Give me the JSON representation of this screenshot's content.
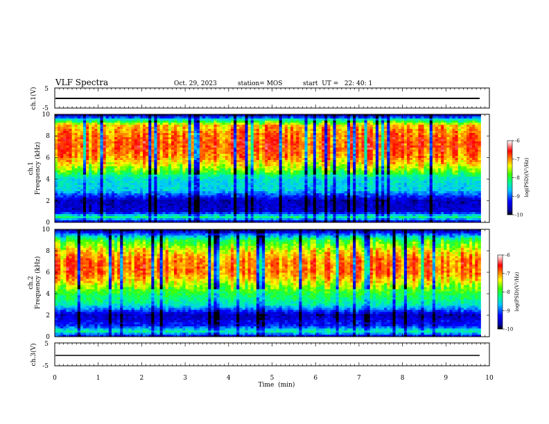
{
  "header": {
    "title": "VLF Spectra",
    "date": "Oct. 29, 2023",
    "station": "station= MOS",
    "start": "start  UT =   22: 40: 1"
  },
  "chart_data": [
    {
      "type": "line",
      "panel": "ch1-waveform",
      "ylabel": "ch.1(V)",
      "ylim": [
        -5,
        5
      ],
      "yticks": [
        "5",
        "-5"
      ],
      "x": [
        0,
        9.8
      ],
      "y": [
        -2,
        -2
      ]
    },
    {
      "type": "heatmap",
      "panel": "ch1-spectrogram",
      "ylabel_lines": [
        "ch.1",
        "Frequency (kHz)"
      ],
      "ylim": [
        0,
        10
      ],
      "yticks": [
        "0",
        "2",
        "4",
        "6",
        "8",
        "10"
      ],
      "xlim": [
        0,
        9.8
      ],
      "colorbar": {
        "label": "log(PSD)(V²/Hz)",
        "range": [
          -10,
          -6
        ],
        "ticks": [
          "-6",
          "-7",
          "-8",
          "-9",
          "-10"
        ]
      },
      "intensity_profile": {
        "freq_khz": [
          0,
          0.5,
          1,
          2,
          3,
          4,
          5,
          6,
          7,
          8,
          9,
          9.5,
          10
        ],
        "log_psd": [
          -9.6,
          -8.2,
          -9.5,
          -9.6,
          -8.6,
          -8.5,
          -7.6,
          -7.0,
          -6.8,
          -6.9,
          -7.2,
          -8.4,
          -9.9
        ]
      }
    },
    {
      "type": "heatmap",
      "panel": "ch2-spectrogram",
      "ylabel_lines": [
        "ch.2",
        "Frequency (kHz)"
      ],
      "ylim": [
        0,
        10
      ],
      "yticks": [
        "0",
        "2",
        "4",
        "6",
        "8",
        "10"
      ],
      "xlim": [
        0,
        9.8
      ],
      "colorbar": {
        "label": "log(PSD)(V²/Hz)",
        "range": [
          -10,
          -6
        ],
        "ticks": [
          "-6",
          "-7",
          "-8",
          "-9",
          "-10"
        ]
      },
      "intensity_profile": {
        "freq_khz": [
          0,
          0.5,
          1,
          2,
          3,
          4,
          5,
          6,
          7,
          8,
          9,
          9.5,
          10
        ],
        "log_psd": [
          -9.4,
          -8.3,
          -9.2,
          -9.6,
          -8.4,
          -8.0,
          -7.4,
          -6.9,
          -6.9,
          -7.3,
          -8.0,
          -8.9,
          -9.9
        ]
      }
    },
    {
      "type": "line",
      "panel": "ch3-waveform",
      "ylabel": "ch.3(V)",
      "ylim": [
        -5,
        5
      ],
      "yticks": [
        "5",
        "-5"
      ],
      "x": [
        0,
        9.8
      ],
      "y": [
        -2,
        -2
      ]
    }
  ],
  "xaxis": {
    "label": "Time  (min)",
    "xlim": [
      0,
      10
    ],
    "ticks": [
      "0",
      "1",
      "2",
      "3",
      "4",
      "5",
      "6",
      "7",
      "8",
      "9",
      "10"
    ]
  }
}
